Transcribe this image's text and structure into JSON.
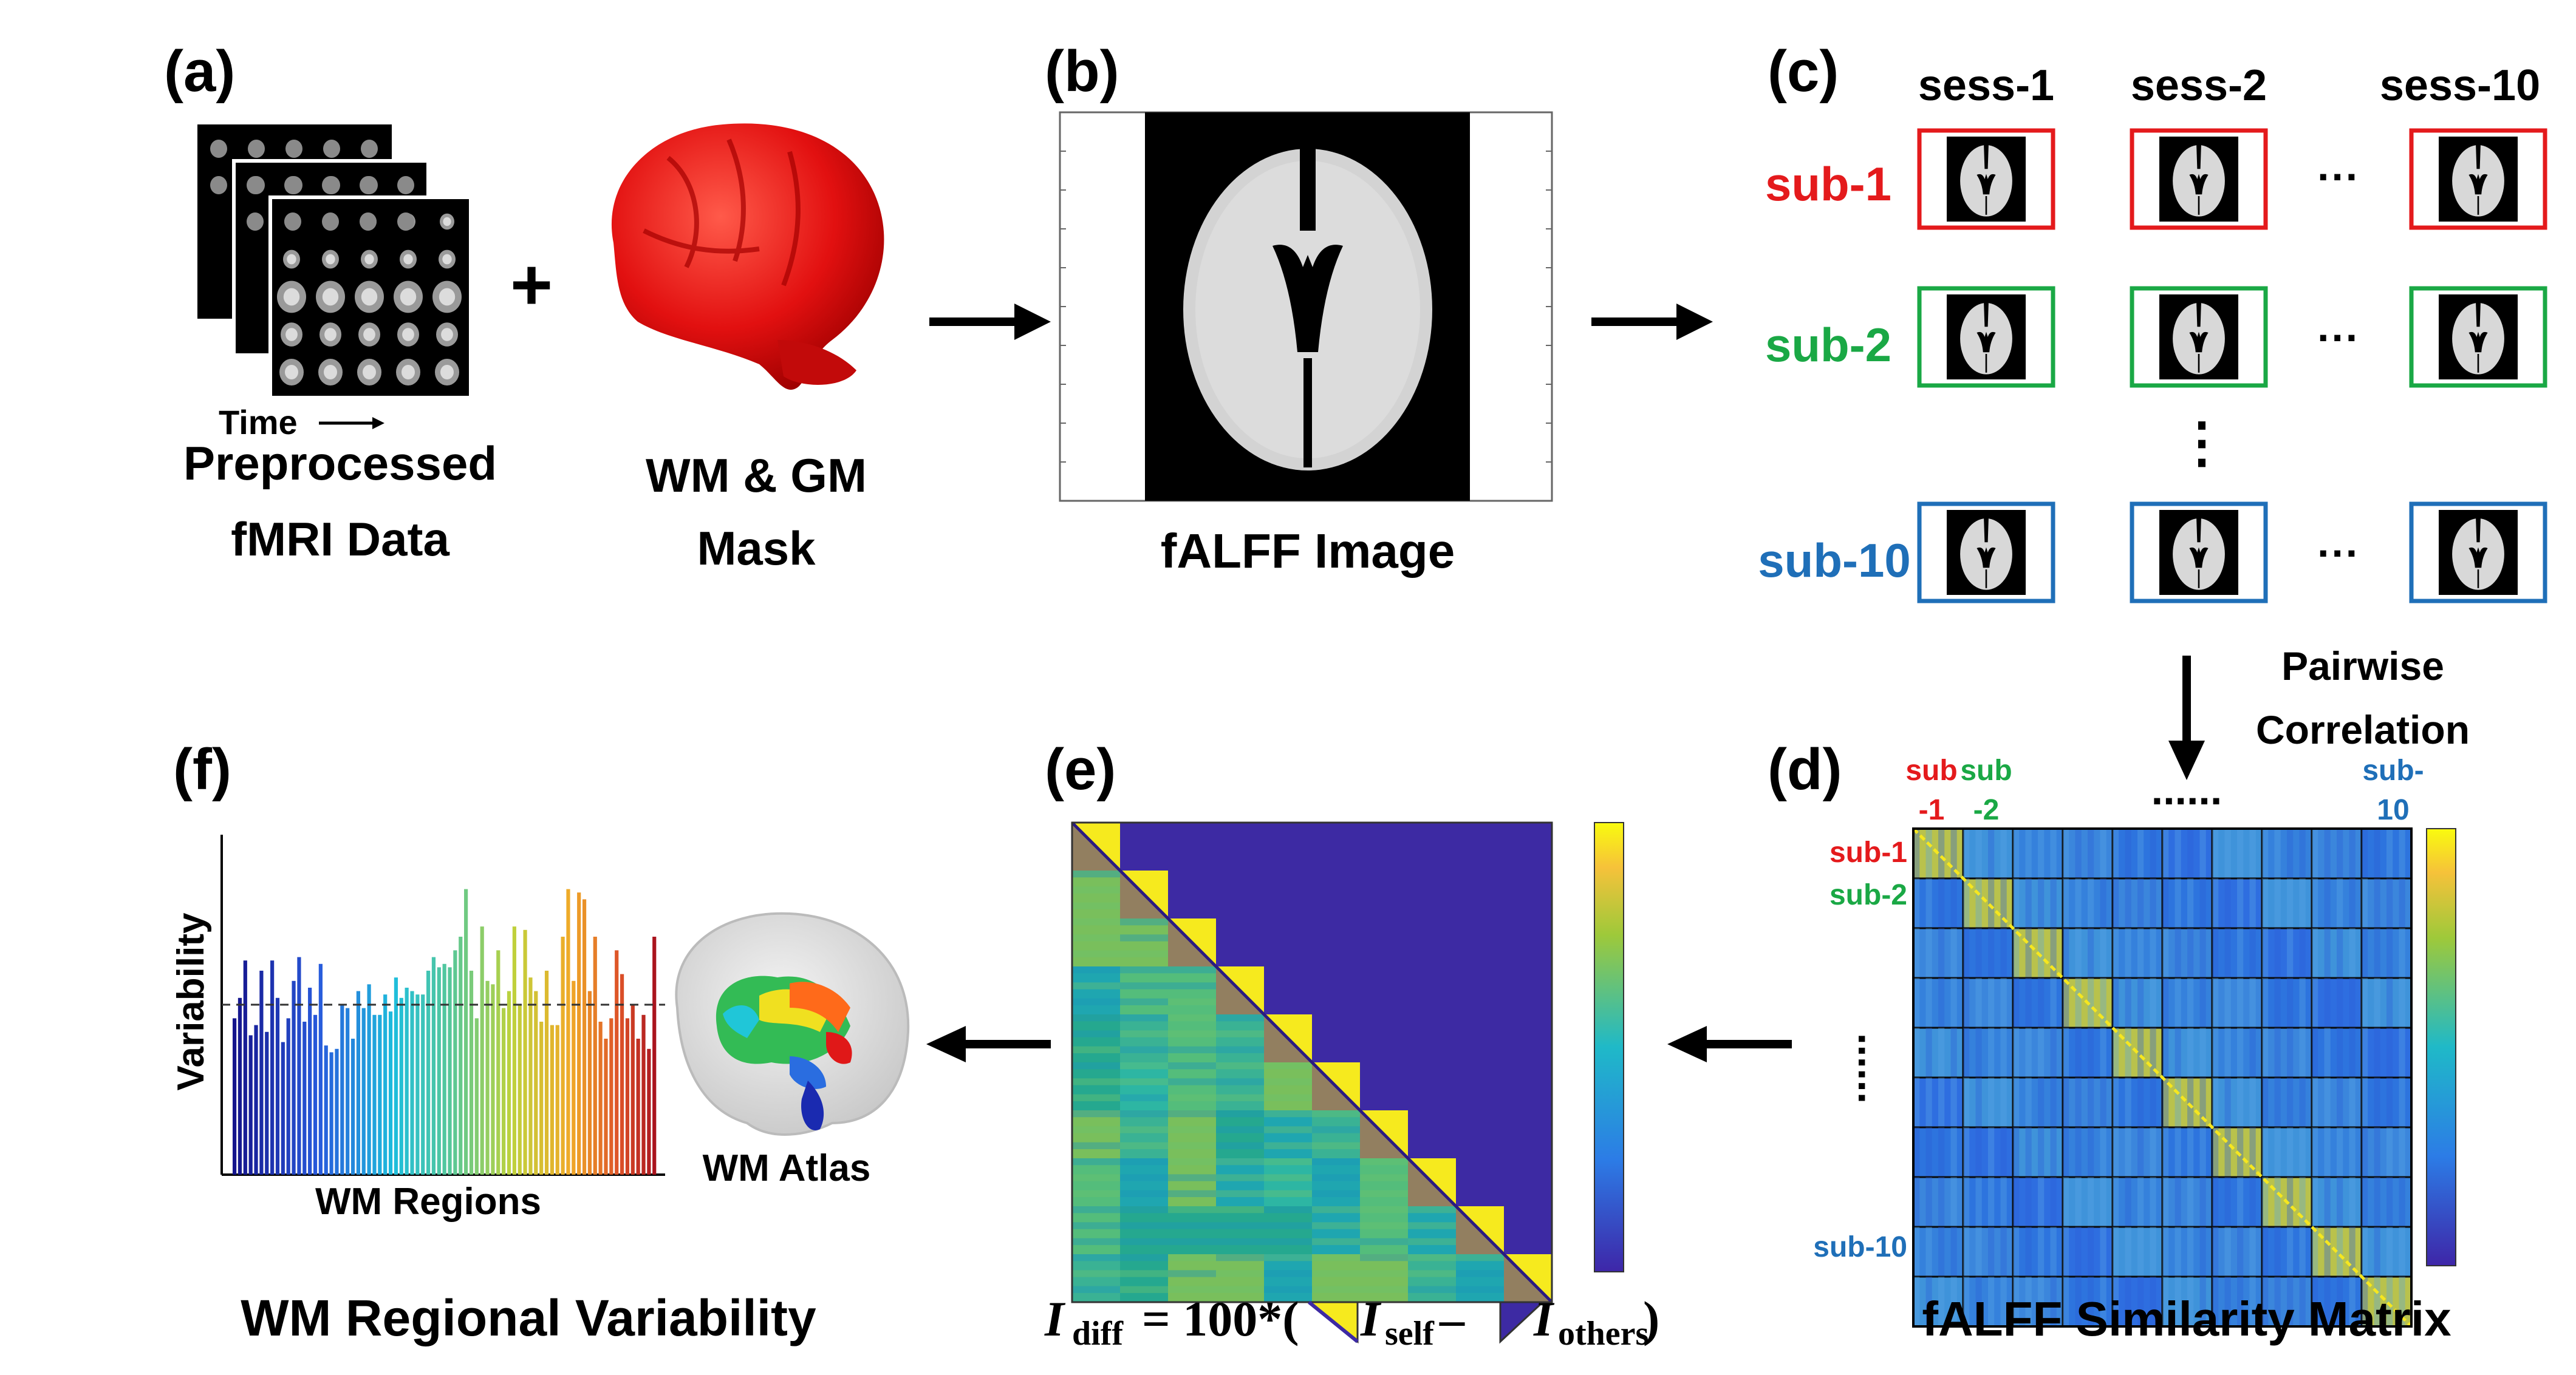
{
  "panels": {
    "a": {
      "letter": "(a)",
      "time_label": "Time",
      "data_line1": "Preprocessed",
      "data_line2": "fMRI Data",
      "plus": "+",
      "mask_line1": "WM & GM",
      "mask_line2": "Mask"
    },
    "b": {
      "letter": "(b)",
      "caption": "fALFF Image"
    },
    "c": {
      "letter": "(c)",
      "sessions": [
        "sess-1",
        "sess-2",
        "sess-10"
      ],
      "subjects": [
        {
          "label": "sub-1",
          "color": "#e41a1c"
        },
        {
          "label": "sub-2",
          "color": "#1aa845"
        },
        {
          "label": "sub-10",
          "color": "#1f6fb8"
        }
      ],
      "hdots": "···",
      "vdots": "⋮",
      "step_line1": "Pairwise",
      "step_line2": "Correlation"
    },
    "d": {
      "letter": "(d)",
      "top_labels": [
        {
          "line1": "sub",
          "line2": "-1",
          "color": "#e41a1c"
        },
        {
          "line1": "sub",
          "line2": "-2",
          "color": "#1aa845"
        },
        {
          "line1": "......",
          "line2": "",
          "color": "#000000"
        },
        {
          "line1": "sub-",
          "line2": "10",
          "color": "#1f6fb8"
        }
      ],
      "left_labels": [
        {
          "text": "sub-1",
          "color": "#e41a1c"
        },
        {
          "text": "sub-2",
          "color": "#1aa845"
        },
        {
          "text": "......",
          "color": "#000000"
        },
        {
          "text": "sub-10",
          "color": "#1f6fb8"
        }
      ],
      "caption": "fALFF Similarity Matrix"
    },
    "e": {
      "letter": "(e)",
      "formula_i": "I",
      "formula_diff": "diff",
      "formula_mid": " = 100*(",
      "formula_self": "self",
      "formula_minus": " –",
      "formula_others": "others",
      "formula_close": ")"
    },
    "f": {
      "letter": "(f)",
      "ylabel": "Variability",
      "xlabel": "WM Regions",
      "atlas_label": "WM Atlas",
      "caption": "WM Regional Variability"
    }
  },
  "chart_data": {
    "type": "bar",
    "xlabel": "WM Regions",
    "ylabel": "Variability",
    "ylim": [
      0,
      100
    ],
    "reference_line": 50,
    "values": [
      46,
      52,
      63,
      41,
      44,
      60,
      42,
      63,
      52,
      39,
      46,
      57,
      64,
      45,
      55,
      47,
      62,
      38,
      36,
      37,
      50,
      49,
      40,
      54,
      49,
      56,
      47,
      47,
      53,
      48,
      58,
      52,
      55,
      54,
      53,
      53,
      60,
      64,
      61,
      62,
      61,
      66,
      70,
      84,
      60,
      46,
      73,
      57,
      56,
      66,
      49,
      54,
      73,
      50,
      72,
      58,
      54,
      45,
      60,
      44,
      44,
      70,
      84,
      57,
      83,
      81,
      54,
      70,
      45,
      40,
      46,
      66,
      59,
      46,
      50,
      40,
      47,
      37,
      70
    ]
  },
  "colors": {
    "matrix_blue": "#3d8fd9",
    "matrix_yellow": "#f6e71e",
    "diff_triangle": "#3d2aa3",
    "mask_red": "#e01010"
  }
}
